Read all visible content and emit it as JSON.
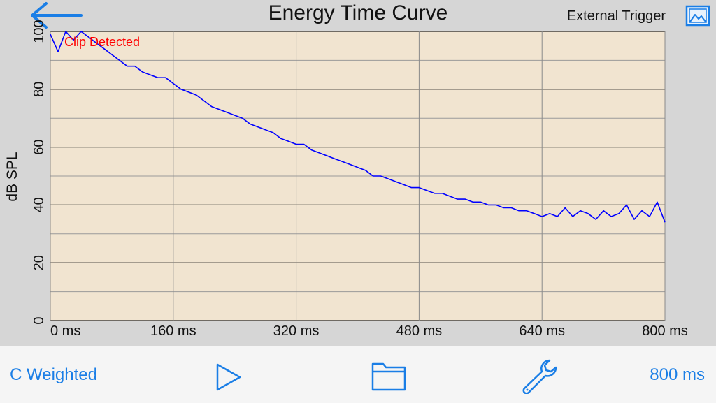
{
  "header": {
    "title": "Energy Time Curve",
    "trigger_label": "External Trigger"
  },
  "toolbar": {
    "weighting_label": "C Weighted",
    "range_label": "800 ms"
  },
  "colors": {
    "accent": "#1a7ee6",
    "plot_background": "#f1e4d0",
    "trace": "#0000ff",
    "clip_warning": "#ff0000"
  },
  "icons": [
    "back-arrow-icon",
    "image-icon",
    "play-icon",
    "folder-icon",
    "wrench-icon"
  ],
  "chart_data": {
    "type": "line",
    "title": "Energy Time Curve",
    "ylabel": "dB SPL",
    "xlabel": "",
    "xlim": [
      0,
      800
    ],
    "ylim": [
      0,
      100
    ],
    "x_unit": "ms",
    "x_ticks": [
      0,
      160,
      320,
      480,
      640,
      800
    ],
    "x_tick_labels": [
      "0 ms",
      "160 ms",
      "320 ms",
      "480 ms",
      "640 ms",
      "800 ms"
    ],
    "y_ticks": [
      0,
      20,
      40,
      60,
      80,
      100
    ],
    "y_tick_labels": [
      "0",
      "20",
      "40",
      "60",
      "80",
      "100"
    ],
    "annotation": "Clip Detected",
    "grid": true,
    "series": [
      {
        "x": [
          0,
          10,
          20,
          30,
          40,
          50,
          60,
          70,
          80,
          90,
          100,
          110,
          120,
          130,
          140,
          150,
          160,
          170,
          180,
          190,
          200,
          210,
          220,
          230,
          240,
          250,
          260,
          270,
          280,
          290,
          300,
          310,
          320,
          330,
          340,
          350,
          360,
          370,
          380,
          390,
          400,
          410,
          420,
          430,
          440,
          450,
          460,
          470,
          480,
          490,
          500,
          510,
          520,
          530,
          540,
          550,
          560,
          570,
          580,
          590,
          600,
          610,
          620,
          630,
          640,
          650,
          660,
          670,
          680,
          690,
          700,
          710,
          720,
          730,
          740,
          750,
          760,
          770,
          780,
          790,
          800
        ],
        "values": [
          99,
          93,
          100,
          97,
          100,
          98,
          96,
          94,
          92,
          90,
          88,
          88,
          86,
          85,
          84,
          84,
          82,
          80,
          79,
          78,
          76,
          74,
          73,
          72,
          71,
          70,
          68,
          67,
          66,
          65,
          63,
          62,
          61,
          61,
          59,
          58,
          57,
          56,
          55,
          54,
          53,
          52,
          50,
          50,
          49,
          48,
          47,
          46,
          46,
          45,
          44,
          44,
          43,
          42,
          42,
          41,
          41,
          40,
          40,
          39,
          39,
          38,
          38,
          37,
          36,
          37,
          36,
          39,
          36,
          38,
          37,
          35,
          38,
          36,
          37,
          40,
          35,
          38,
          36,
          41,
          34
        ]
      }
    ]
  }
}
